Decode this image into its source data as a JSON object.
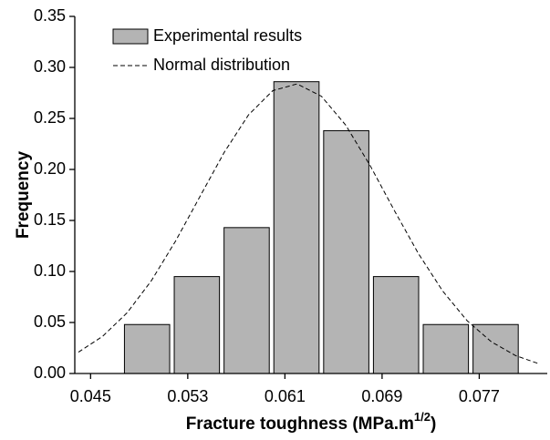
{
  "chart_data": {
    "type": "histogram",
    "ylabel": "Frequency",
    "xlabel": [
      "Fracture toughness (MPa.m",
      "1/2",
      ")"
    ],
    "bins": [
      0.0476,
      0.0517,
      0.0558,
      0.0599,
      0.064,
      0.0681,
      0.0722,
      0.0763,
      0.0804
    ],
    "series": [
      {
        "name": "Experimental results",
        "color": "#b4b4b4",
        "values": [
          0.048,
          0.095,
          0.143,
          0.286,
          0.238,
          0.095,
          0.048,
          0.048
        ]
      }
    ],
    "curve": {
      "name": "Normal distribution",
      "color": "#000000",
      "x": [
        0.044,
        0.046,
        0.048,
        0.05,
        0.052,
        0.054,
        0.056,
        0.058,
        0.06,
        0.062,
        0.064,
        0.066,
        0.068,
        0.07,
        0.072,
        0.074,
        0.076,
        0.078,
        0.08,
        0.082
      ],
      "values": [
        0.0209,
        0.0365,
        0.0595,
        0.0909,
        0.1298,
        0.1734,
        0.2167,
        0.2534,
        0.2772,
        0.2838,
        0.2718,
        0.2435,
        0.2041,
        0.16,
        0.1174,
        0.0806,
        0.0518,
        0.0311,
        0.0175,
        0.0092
      ]
    },
    "xlim": [
      0.0437,
      0.0826
    ],
    "ylim": [
      0,
      0.35
    ],
    "xticks": [
      0.045,
      0.053,
      0.061,
      0.069,
      0.077
    ],
    "yticks": [
      {
        "value": 0,
        "label": "0.00"
      },
      0.05,
      {
        "value": 0.1,
        "label": "0.10"
      },
      0.15,
      {
        "value": 0.2,
        "label": "0.20"
      },
      0.25,
      {
        "value": 0.3,
        "label": "0.30"
      },
      0.35
    ],
    "legend": "upper left"
  }
}
